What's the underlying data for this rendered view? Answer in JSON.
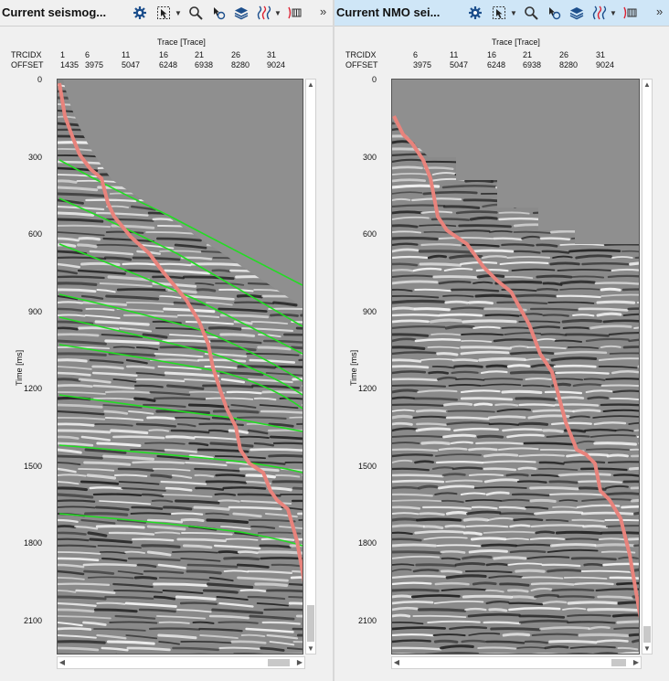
{
  "left": {
    "title": "Current seismog...",
    "axis_title": "Trace [Trace]",
    "row_labels": [
      "TRCIDX",
      "OFFSET"
    ],
    "trcidx": [
      "1",
      "6",
      "11",
      "16",
      "21",
      "26",
      "31"
    ],
    "offset": [
      "1435",
      "3975",
      "5047",
      "6248",
      "6938",
      "8280",
      "9024"
    ],
    "y_ticks": [
      "0",
      "300",
      "600",
      "900",
      "1200",
      "1500",
      "1800",
      "2100"
    ],
    "ylabel": "Time [ms]"
  },
  "right": {
    "title": "Current NMO sei...",
    "axis_title": "Trace [Trace]",
    "row_labels": [
      "TRCIDX",
      "OFFSET"
    ],
    "trcidx": [
      "6",
      "11",
      "16",
      "21",
      "26",
      "31"
    ],
    "offset": [
      "3975",
      "5047",
      "6248",
      "6938",
      "8280",
      "9024"
    ],
    "y_ticks": [
      "0",
      "300",
      "600",
      "900",
      "1200",
      "1500",
      "1800",
      "2100"
    ],
    "ylabel": "Time [ms]"
  },
  "toolbar": {
    "icons": [
      "gear-icon",
      "pointer-select-icon",
      "zoom-icon",
      "pick-icon",
      "layers-icon",
      "wiggle-display-icon",
      "spectrum-icon"
    ],
    "more": "»"
  },
  "colors": {
    "velocity_curve": "#e8837c",
    "horizon_lines": "#22dd22",
    "title_active_bg": "#cfe6f7",
    "seismic_bg": "#8a8a8a"
  }
}
